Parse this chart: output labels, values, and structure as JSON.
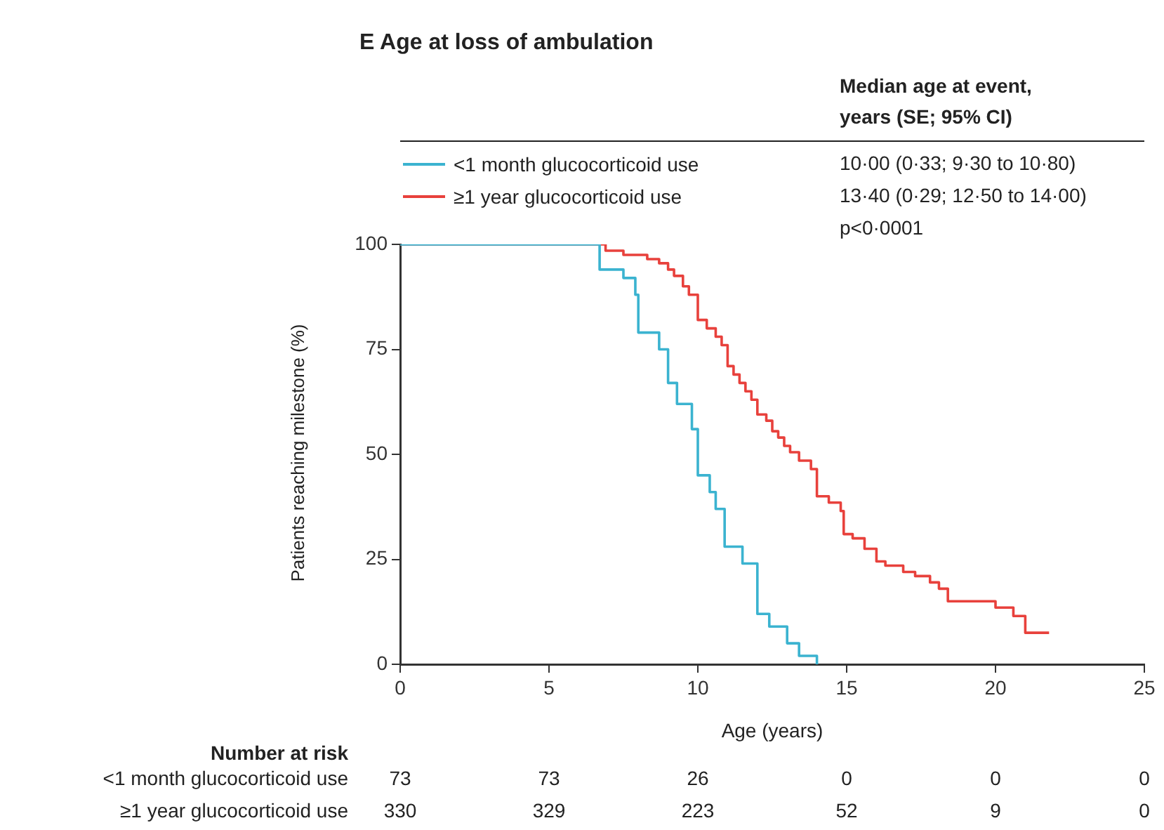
{
  "chart_data": {
    "type": "step",
    "title": "E  Age at loss of ambulation",
    "xlabel": "Age (years)",
    "ylabel": "Patients reaching milestone (%)",
    "xlim": [
      0,
      25
    ],
    "xticks": [
      0,
      5,
      10,
      15,
      20,
      25
    ],
    "ylim": [
      0,
      100
    ],
    "yticks": [
      0,
      25,
      50,
      75,
      100
    ],
    "grid": false,
    "legend": "top",
    "marker": "none",
    "line_style": "solid",
    "series": [
      {
        "name": "<1 month glucocorticoid use",
        "color": "#3bb3d0",
        "x": [
          0,
          6.7,
          7.5,
          7.9,
          8.0,
          8.7,
          9.0,
          9.3,
          9.8,
          10.0,
          10.4,
          10.6,
          10.9,
          11.5,
          12.0,
          12.4,
          13.0,
          13.4,
          14.0
        ],
        "values": [
          100,
          94,
          92,
          88,
          79,
          75,
          67,
          62,
          56,
          45,
          41,
          37,
          28,
          24,
          12,
          9,
          5,
          2,
          0
        ]
      },
      {
        "name": "≥1 year glucocorticoid use",
        "color": "#e8413c",
        "x": [
          0,
          6.9,
          7.5,
          8.3,
          8.7,
          9.0,
          9.2,
          9.5,
          9.7,
          10.0,
          10.3,
          10.6,
          10.8,
          11.0,
          11.2,
          11.4,
          11.6,
          11.8,
          12.0,
          12.3,
          12.5,
          12.7,
          12.9,
          13.1,
          13.4,
          13.8,
          14.0,
          14.4,
          14.8,
          14.9,
          15.2,
          15.6,
          16.0,
          16.3,
          16.9,
          17.3,
          17.8,
          18.1,
          18.4,
          20.0,
          20.6,
          21.0,
          21.8
        ],
        "values": [
          100,
          98.5,
          97.5,
          96.5,
          95.5,
          94,
          92.5,
          90,
          88,
          82,
          80,
          78,
          76,
          71,
          69,
          67,
          65,
          63,
          59.5,
          58,
          55.5,
          54,
          52,
          50.5,
          48.5,
          46.5,
          40,
          38.5,
          36.5,
          31,
          30,
          27.5,
          24.5,
          23.5,
          22,
          21,
          19.5,
          18,
          15,
          13.5,
          11.5,
          7.5,
          7.5
        ]
      }
    ],
    "annotations": [
      "Median age at event, years (SE; 95% CI)",
      "10·00 (0·33; 9·30 to 10·80)",
      "13·40 (0·29; 12·50 to 14·00)",
      "p<0·0001",
      "Number at risk",
      "73",
      "73",
      "26",
      "0",
      "0",
      "0",
      "330",
      "329",
      "223",
      "52",
      "9",
      "0"
    ]
  }
}
